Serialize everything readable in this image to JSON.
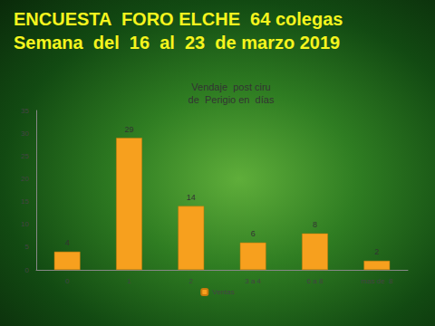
{
  "chart_data": {
    "type": "bar",
    "title": "ENCUESTA  FORO ELCHE  64 colegas",
    "subtitle": "Semana  del  16  al  23  de marzo 2019",
    "chart_title": [
      "Vendaje  post ciru",
      "de  Perigio en  días"
    ],
    "categories": [
      "0",
      "1",
      "2",
      "3 a 4",
      "6 a 8",
      "mas de  8"
    ],
    "series": [
      {
        "name": "Ventas",
        "color": "#f7a01e",
        "values": [
          4,
          29,
          14,
          6,
          8,
          2
        ]
      }
    ],
    "ylim": [
      0,
      35
    ],
    "yticks": [
      0,
      5,
      10,
      15,
      20,
      25,
      30,
      35
    ],
    "grid": false,
    "legend": "bottom",
    "data_labels": true
  }
}
